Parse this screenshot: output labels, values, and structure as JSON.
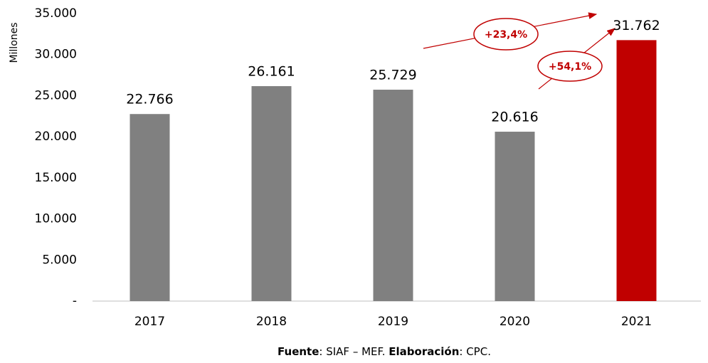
{
  "chart_data": {
    "type": "bar",
    "y_axis_label": "Millones",
    "categories": [
      "2017",
      "2018",
      "2019",
      "2020",
      "2021"
    ],
    "values": [
      22766,
      26161,
      25729,
      20616,
      31762
    ],
    "value_labels": [
      "22.766",
      "26.161",
      "25.729",
      "20.616",
      "31.762"
    ],
    "colors": [
      "#808080",
      "#808080",
      "#808080",
      "#808080",
      "#c00000"
    ],
    "ylim": [
      0,
      35000
    ],
    "yticks": [
      {
        "value": 0,
        "label": "-"
      },
      {
        "value": 5000,
        "label": "5.000"
      },
      {
        "value": 10000,
        "label": "10.000"
      },
      {
        "value": 15000,
        "label": "15.000"
      },
      {
        "value": 20000,
        "label": "20.000"
      },
      {
        "value": 25000,
        "label": "25.000"
      },
      {
        "value": 30000,
        "label": "30.000"
      },
      {
        "value": 35000,
        "label": "35.000"
      }
    ],
    "grid": false,
    "annotations": [
      "+23,4%",
      "+54,1%"
    ],
    "source": [
      {
        "text": "Fuente",
        "bold": true
      },
      {
        "text": ": SIAF – MEF. ",
        "bold": false
      },
      {
        "text": "Elaboración",
        "bold": true
      },
      {
        "text": ": CPC.",
        "bold": false
      }
    ]
  }
}
